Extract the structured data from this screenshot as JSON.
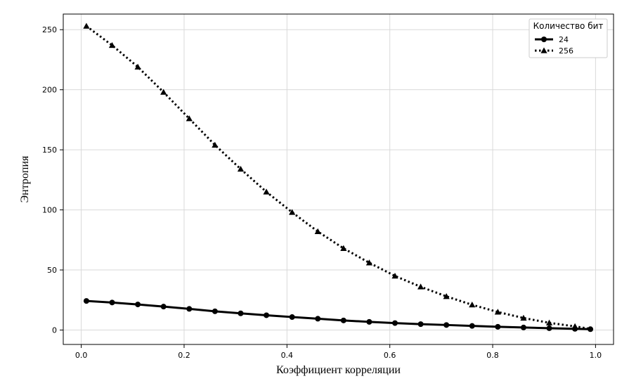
{
  "chart_data": {
    "type": "line",
    "title": "",
    "xlabel": "Коэффициент корреляции",
    "ylabel": "Энтропия",
    "xlim": [
      -0.035,
      1.035
    ],
    "ylim": [
      -12,
      263
    ],
    "xticks": [
      0.0,
      0.2,
      0.4,
      0.6,
      0.8,
      1.0
    ],
    "xtick_labels": [
      "0.0",
      "0.2",
      "0.4",
      "0.6",
      "0.8",
      "1.0"
    ],
    "yticks": [
      0,
      50,
      100,
      150,
      200,
      250
    ],
    "ytick_labels": [
      "0",
      "50",
      "100",
      "150",
      "200",
      "250"
    ],
    "grid": true,
    "legend": {
      "title": "Количество бит",
      "placement": "top-right"
    },
    "series": [
      {
        "name": "24",
        "line_style": "solid",
        "marker": "circle",
        "color": "#000000",
        "x": [
          0.01,
          0.06,
          0.11,
          0.16,
          0.21,
          0.26,
          0.31,
          0.36,
          0.41,
          0.46,
          0.51,
          0.56,
          0.61,
          0.66,
          0.71,
          0.76,
          0.81,
          0.86,
          0.91,
          0.96,
          0.99
        ],
        "y": [
          24.2,
          22.9,
          21.3,
          19.5,
          17.6,
          15.6,
          13.9,
          12.3,
          10.8,
          9.4,
          8.0,
          6.8,
          5.8,
          4.9,
          4.2,
          3.4,
          2.7,
          2.1,
          1.5,
          1.0,
          0.7
        ]
      },
      {
        "name": "256",
        "line_style": "dotted",
        "marker": "triangle",
        "color": "#000000",
        "x": [
          0.01,
          0.06,
          0.11,
          0.16,
          0.21,
          0.26,
          0.31,
          0.36,
          0.41,
          0.46,
          0.51,
          0.56,
          0.61,
          0.66,
          0.71,
          0.76,
          0.81,
          0.86,
          0.91,
          0.96,
          0.99
        ],
        "y": [
          253,
          237,
          219,
          198,
          176,
          154,
          134,
          115,
          98,
          82,
          68,
          56,
          45,
          36,
          28,
          21,
          15,
          10,
          6,
          3,
          1
        ]
      }
    ]
  }
}
